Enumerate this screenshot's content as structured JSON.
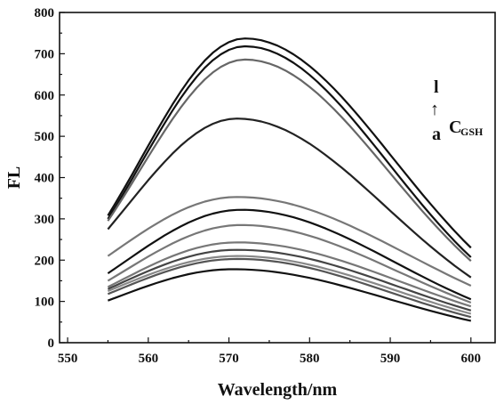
{
  "chart_data": {
    "type": "line",
    "title": "",
    "xlabel": "Wavelength/nm",
    "ylabel": "FL",
    "xlim": [
      549,
      603
    ],
    "ylim": [
      0,
      800
    ],
    "xticks": [
      550,
      560,
      570,
      580,
      590,
      600
    ],
    "yticks": [
      0,
      100,
      200,
      300,
      400,
      500,
      600,
      700,
      800
    ],
    "x": [
      555,
      556,
      557,
      558,
      559,
      560,
      561,
      562,
      563,
      564,
      565,
      566,
      567,
      568,
      569,
      570,
      571,
      572,
      573,
      574,
      575,
      576,
      577,
      578,
      579,
      580,
      581,
      582,
      583,
      584,
      585,
      586,
      587,
      588,
      589,
      590,
      591,
      592,
      593,
      594,
      595,
      596,
      597,
      598,
      599,
      600
    ],
    "series": [
      {
        "peak_x": 572.0,
        "start": 308,
        "peak": 737,
        "end": 230,
        "color": "#111111"
      },
      {
        "peak_x": 572.0,
        "start": 300,
        "peak": 718,
        "end": 207,
        "color": "#111111"
      },
      {
        "peak_x": 572.0,
        "start": 295,
        "peak": 686,
        "end": 198,
        "color": "#666666"
      },
      {
        "peak_x": 571.0,
        "start": 275,
        "peak": 543,
        "end": 158,
        "color": "#222222"
      },
      {
        "peak_x": 571.0,
        "start": 210,
        "peak": 353,
        "end": 138,
        "color": "#777777"
      },
      {
        "peak_x": 571.5,
        "start": 168,
        "peak": 322,
        "end": 105,
        "color": "#111111"
      },
      {
        "peak_x": 571.5,
        "start": 150,
        "peak": 285,
        "end": 97,
        "color": "#777777"
      },
      {
        "peak_x": 571.0,
        "start": 135,
        "peak": 243,
        "end": 88,
        "color": "#777777"
      },
      {
        "peak_x": 571.0,
        "start": 130,
        "peak": 225,
        "end": 78,
        "color": "#444444"
      },
      {
        "peak_x": 571.0,
        "start": 125,
        "peak": 210,
        "end": 70,
        "color": "#888888"
      },
      {
        "peak_x": 571.0,
        "start": 118,
        "peak": 203,
        "end": 62,
        "color": "#555555"
      },
      {
        "peak_x": 570.5,
        "start": 102,
        "peak": 178,
        "end": 53,
        "color": "#111111"
      }
    ]
  },
  "annotation": {
    "top": "l",
    "arrow": "↑",
    "bottom": "a",
    "label": "C",
    "subscript": "GSH"
  }
}
